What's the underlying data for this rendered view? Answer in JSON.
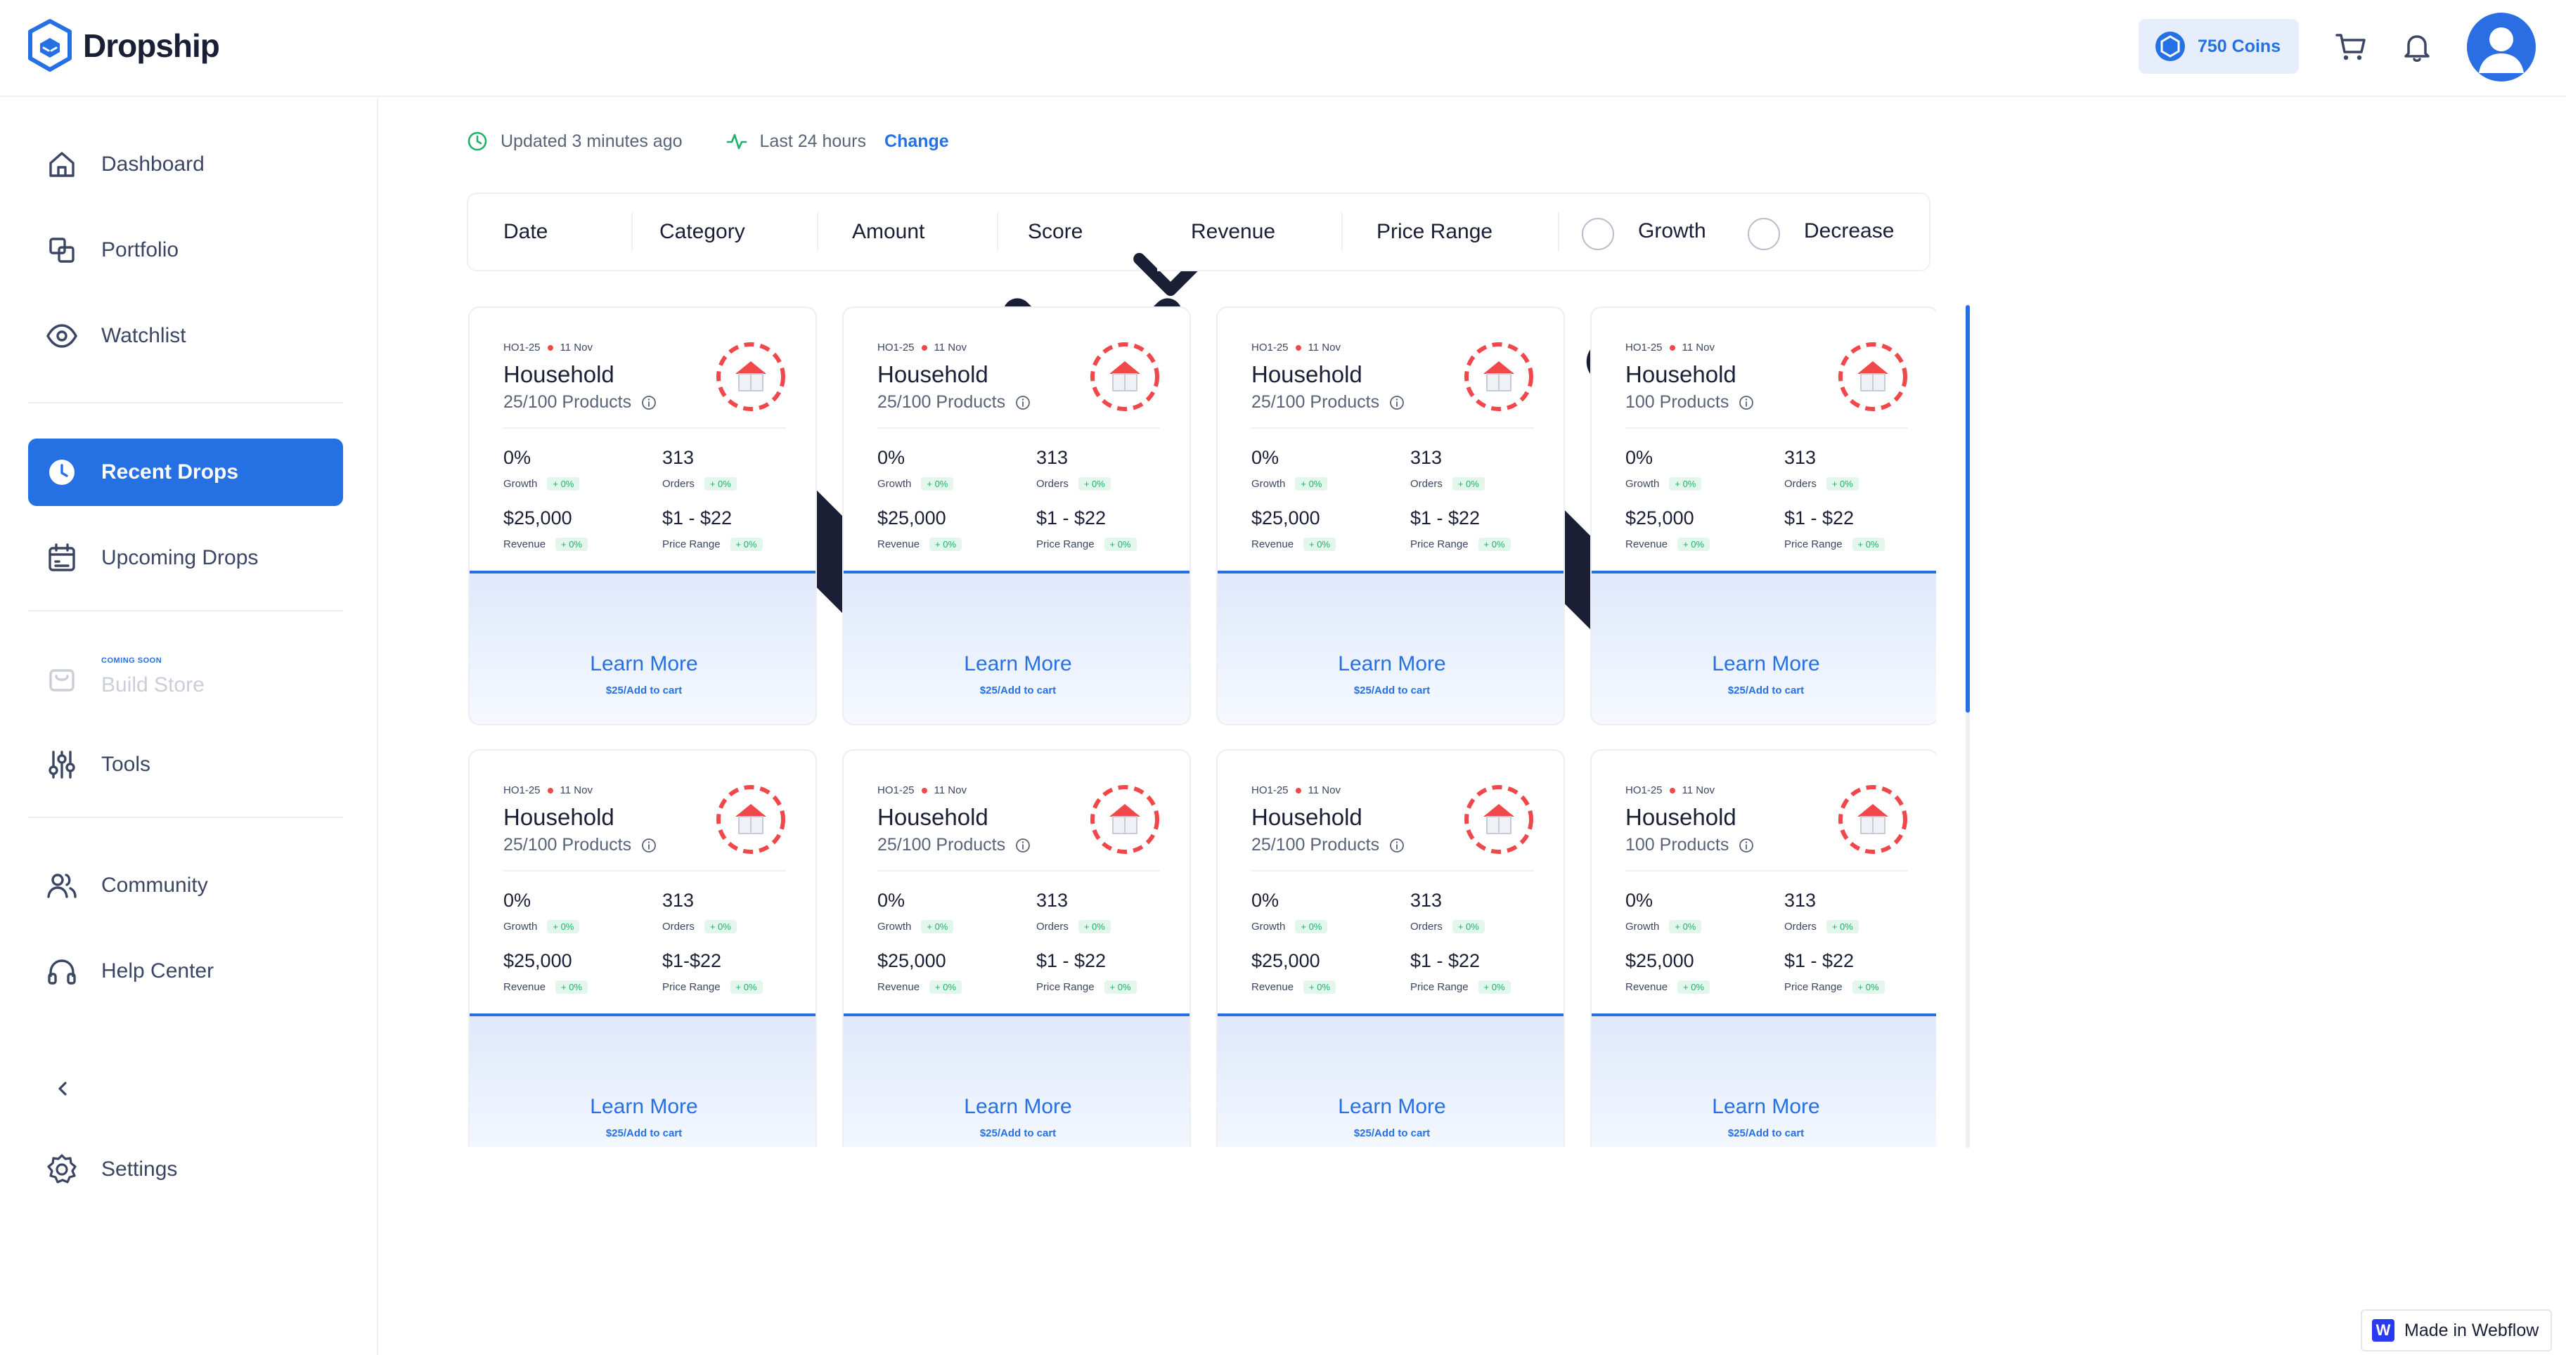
{
  "app": {
    "name": "Dropship"
  },
  "header": {
    "coins_label": "750 Coins"
  },
  "sidebar": {
    "items": [
      {
        "key": "dashboard",
        "label": "Dashboard",
        "icon": "home-icon",
        "active": false
      },
      {
        "key": "portfolio",
        "label": "Portfolio",
        "icon": "portfolio-icon",
        "active": false
      },
      {
        "key": "watchlist",
        "label": "Watchlist",
        "icon": "eye-icon",
        "active": false
      },
      {
        "key": "recent-drops",
        "label": "Recent Drops",
        "icon": "clock-icon",
        "active": true
      },
      {
        "key": "upcoming-drops",
        "label": "Upcoming Drops",
        "icon": "calendar-icon",
        "active": false
      },
      {
        "key": "build-store",
        "label": "Build Store",
        "icon": "store-icon",
        "active": false,
        "badge": "COMING SOON",
        "disabled": true
      },
      {
        "key": "tools",
        "label": "Tools",
        "icon": "sliders-icon",
        "active": false
      },
      {
        "key": "community",
        "label": "Community",
        "icon": "users-icon",
        "active": false
      },
      {
        "key": "help-center",
        "label": "Help Center",
        "icon": "headphones-icon",
        "active": false
      },
      {
        "key": "settings",
        "label": "Settings",
        "icon": "gear-icon",
        "active": false
      }
    ]
  },
  "status": {
    "updated": "Updated 3 minutes ago",
    "range": "Last 24 hours",
    "change": "Change"
  },
  "filters": {
    "dropdowns": [
      "Date",
      "Category",
      "Amount",
      "Score",
      "Revenue",
      "Price Range"
    ],
    "toggles": [
      "Growth",
      "Decrease"
    ]
  },
  "cards": [
    {
      "code": "HO1-25",
      "date": "11 Nov",
      "title": "Household",
      "products": "25/100 Products",
      "growth": "0%",
      "growth_label": "Growth",
      "growth_delta": "+ 0%",
      "orders": "313",
      "orders_label": "Orders",
      "orders_delta": "+ 0%",
      "revenue": "$25,000",
      "revenue_label": "Revenue",
      "revenue_delta": "+ 0%",
      "price": "$1 - $22",
      "price_label": "Price Range",
      "price_delta": "+ 0%",
      "cta": "Learn More",
      "cart": "$25/Add to cart"
    },
    {
      "code": "HO1-25",
      "date": "11 Nov",
      "title": "Household",
      "products": "25/100 Products",
      "growth": "0%",
      "growth_label": "Growth",
      "growth_delta": "+ 0%",
      "orders": "313",
      "orders_label": "Orders",
      "orders_delta": "+ 0%",
      "revenue": "$25,000",
      "revenue_label": "Revenue",
      "revenue_delta": "+ 0%",
      "price": "$1 - $22",
      "price_label": "Price Range",
      "price_delta": "+ 0%",
      "cta": "Learn More",
      "cart": "$25/Add to cart"
    },
    {
      "code": "HO1-25",
      "date": "11 Nov",
      "title": "Household",
      "products": "25/100 Products",
      "growth": "0%",
      "growth_label": "Growth",
      "growth_delta": "+ 0%",
      "orders": "313",
      "orders_label": "Orders",
      "orders_delta": "+ 0%",
      "revenue": "$25,000",
      "revenue_label": "Revenue",
      "revenue_delta": "+ 0%",
      "price": "$1 - $22",
      "price_label": "Price Range",
      "price_delta": "+ 0%",
      "cta": "Learn More",
      "cart": "$25/Add to cart"
    },
    {
      "code": "HO1-25",
      "date": "11 Nov",
      "title": "Household",
      "products": "100 Products",
      "growth": "0%",
      "growth_label": "Growth",
      "growth_delta": "+ 0%",
      "orders": "313",
      "orders_label": "Orders",
      "orders_delta": "+ 0%",
      "revenue": "$25,000",
      "revenue_label": "Revenue",
      "revenue_delta": "+ 0%",
      "price": "$1 - $22",
      "price_label": "Price Range",
      "price_delta": "+ 0%",
      "cta": "Learn More",
      "cart": "$25/Add to cart"
    },
    {
      "code": "HO1-25",
      "date": "11 Nov",
      "title": "Household",
      "products": "25/100 Products",
      "growth": "0%",
      "growth_label": "Growth",
      "growth_delta": "+ 0%",
      "orders": "313",
      "orders_label": "Orders",
      "orders_delta": "+ 0%",
      "revenue": "$25,000",
      "revenue_label": "Revenue",
      "revenue_delta": "+ 0%",
      "price": "$1-$22",
      "price_label": "Price Range",
      "price_delta": "+ 0%",
      "cta": "Learn More",
      "cart": "$25/Add to cart"
    },
    {
      "code": "HO1-25",
      "date": "11 Nov",
      "title": "Household",
      "products": "25/100 Products",
      "growth": "0%",
      "growth_label": "Growth",
      "growth_delta": "+ 0%",
      "orders": "313",
      "orders_label": "Orders",
      "orders_delta": "+ 0%",
      "revenue": "$25,000",
      "revenue_label": "Revenue",
      "revenue_delta": "+ 0%",
      "price": "$1 - $22",
      "price_label": "Price Range",
      "price_delta": "+ 0%",
      "cta": "Learn More",
      "cart": "$25/Add to cart"
    },
    {
      "code": "HO1-25",
      "date": "11 Nov",
      "title": "Household",
      "products": "25/100 Products",
      "growth": "0%",
      "growth_label": "Growth",
      "growth_delta": "+ 0%",
      "orders": "313",
      "orders_label": "Orders",
      "orders_delta": "+ 0%",
      "revenue": "$25,000",
      "revenue_label": "Revenue",
      "revenue_delta": "+ 0%",
      "price": "$1 - $22",
      "price_label": "Price Range",
      "price_delta": "+ 0%",
      "cta": "Learn More",
      "cart": "$25/Add to cart"
    },
    {
      "code": "HO1-25",
      "date": "11 Nov",
      "title": "Household",
      "products": "100 Products",
      "growth": "0%",
      "growth_label": "Growth",
      "growth_delta": "+ 0%",
      "orders": "313",
      "orders_label": "Orders",
      "orders_delta": "+ 0%",
      "revenue": "$25,000",
      "revenue_label": "Revenue",
      "revenue_delta": "+ 0%",
      "price": "$1 - $22",
      "price_label": "Price Range",
      "price_delta": "+ 0%",
      "cta": "Learn More",
      "cart": "$25/Add to cart"
    }
  ],
  "footer": {
    "badge_letter": "W",
    "webflow": "Made in Webflow"
  },
  "colors": {
    "accent": "#2570e3",
    "positive": "#1fb06a",
    "badge_red": "#f0484a"
  }
}
